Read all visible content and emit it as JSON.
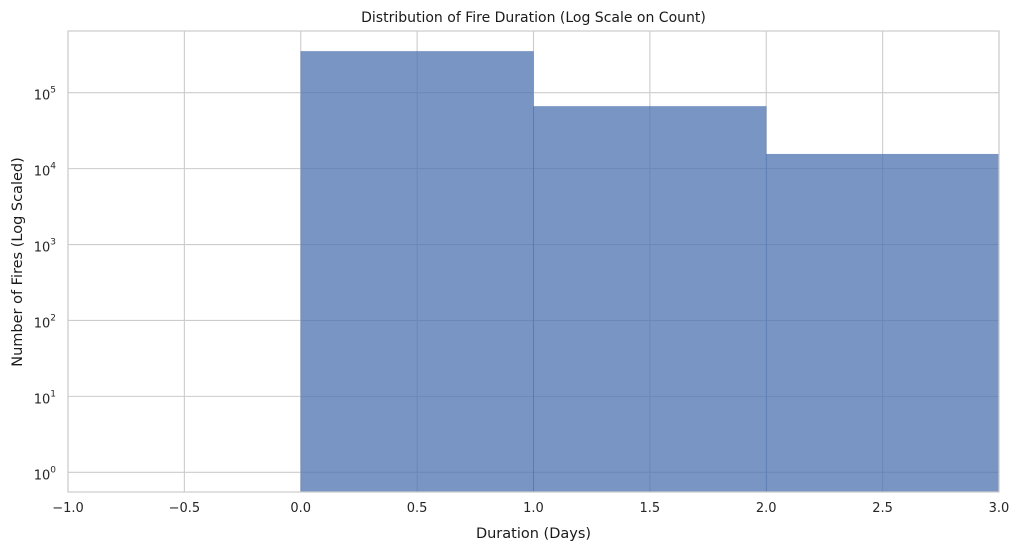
{
  "chart_data": {
    "type": "bar",
    "title": "Distribution of Fire Duration (Log Scale on Count)",
    "xlabel": "Duration (Days)",
    "ylabel": "Number of Fires (Log Scaled)",
    "yscale": "log",
    "xlim": [
      -1.0,
      3.0
    ],
    "ylim": [
      0.55,
      650000
    ],
    "grid": true,
    "bar_color": "#4c72b0",
    "bars": [
      {
        "x0": 0.0,
        "x1": 1.0,
        "value": 350000
      },
      {
        "x0": 1.0,
        "x1": 2.0,
        "value": 66000
      },
      {
        "x0": 2.0,
        "x1": 3.0,
        "value": 15500
      }
    ],
    "xticks": [
      {
        "value": -1.0,
        "label": "−1.0"
      },
      {
        "value": -0.5,
        "label": "−0.5"
      },
      {
        "value": 0.0,
        "label": "0.0"
      },
      {
        "value": 0.5,
        "label": "0.5"
      },
      {
        "value": 1.0,
        "label": "1.0"
      },
      {
        "value": 1.5,
        "label": "1.5"
      },
      {
        "value": 2.0,
        "label": "2.0"
      },
      {
        "value": 2.5,
        "label": "2.5"
      },
      {
        "value": 3.0,
        "label": "3.0"
      }
    ],
    "yticks": [
      {
        "value": 1,
        "base": "10",
        "exp": "0"
      },
      {
        "value": 10,
        "base": "10",
        "exp": "1"
      },
      {
        "value": 100,
        "base": "10",
        "exp": "2"
      },
      {
        "value": 1000,
        "base": "10",
        "exp": "3"
      },
      {
        "value": 10000,
        "base": "10",
        "exp": "4"
      },
      {
        "value": 100000,
        "base": "10",
        "exp": "5"
      }
    ]
  }
}
